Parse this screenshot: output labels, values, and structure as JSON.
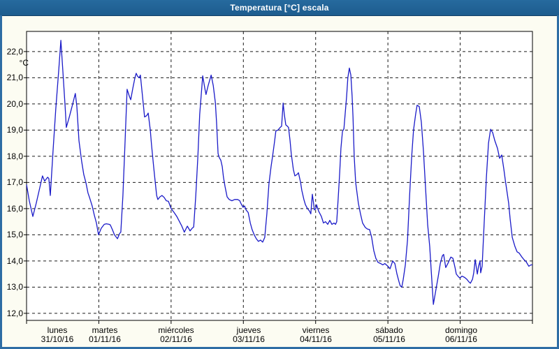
{
  "window": {
    "title": "Temperatura [°C] escala"
  },
  "colors": {
    "titlebar": "#1d5c8e",
    "frame": "#2e6da4",
    "background": "#fcfcf2",
    "plot_background": "#ffffff",
    "grid": "#1a1a1a",
    "axis": "#000000",
    "series_line": "#1a1ac8",
    "title_text": "#ffffff",
    "label_text": "#000000"
  },
  "chart_data": {
    "type": "line",
    "title": "Temperatura [°C] escala",
    "legend": "none",
    "grid": "dashed",
    "y_axis": {
      "unit_label": "°C",
      "tick_values": [
        22,
        21,
        20,
        19,
        18,
        17,
        16,
        15,
        14,
        13,
        12
      ],
      "tick_labels": [
        "22,0",
        "21,0",
        "20,0",
        "19,0",
        "18,0",
        "17,0",
        "16,0",
        "15,0",
        "14,0",
        "13,0",
        "12,0"
      ],
      "max": 22.77,
      "min": 11.73
    },
    "x_axis": {
      "unit": "hours_from_monday_00h",
      "range_hours": [
        0,
        168
      ],
      "day_tick_hours": [
        0,
        24,
        48,
        72,
        96,
        120,
        144,
        168
      ],
      "labels": [
        {
          "day": "lunes",
          "date": "31/10/16"
        },
        {
          "day": "martes",
          "date": "01/11/16"
        },
        {
          "day": "miércoles",
          "date": "02/11/16"
        },
        {
          "day": "jueves",
          "date": "03/11/16"
        },
        {
          "day": "viernes",
          "date": "04/11/16"
        },
        {
          "day": "sábado",
          "date": "05/11/16"
        },
        {
          "day": "domingo",
          "date": "06/11/16"
        }
      ]
    },
    "series": [
      {
        "name": "Temperatura",
        "color": "#1a1ac8",
        "points": [
          [
            0.0,
            16.92
          ],
          [
            0.9,
            16.3
          ],
          [
            2.1,
            15.7
          ],
          [
            3.2,
            16.2
          ],
          [
            4.2,
            16.7
          ],
          [
            5.3,
            17.25
          ],
          [
            6.0,
            17.05
          ],
          [
            7.0,
            17.2
          ],
          [
            7.4,
            17.15
          ],
          [
            7.9,
            16.5
          ],
          [
            8.8,
            18.2
          ],
          [
            9.7,
            19.8
          ],
          [
            10.7,
            21.3
          ],
          [
            11.4,
            22.43
          ],
          [
            12.1,
            21.2
          ],
          [
            12.8,
            19.9
          ],
          [
            13.2,
            19.1
          ],
          [
            14.2,
            19.5
          ],
          [
            15.1,
            19.9
          ],
          [
            16.2,
            20.4
          ],
          [
            16.7,
            19.9
          ],
          [
            17.4,
            18.6
          ],
          [
            18.3,
            17.8
          ],
          [
            19.0,
            17.3
          ],
          [
            19.7,
            17.0
          ],
          [
            20.4,
            16.6
          ],
          [
            20.9,
            16.43
          ],
          [
            21.8,
            16.1
          ],
          [
            22.5,
            15.75
          ],
          [
            23.2,
            15.45
          ],
          [
            23.9,
            15.0
          ],
          [
            24.8,
            15.25
          ],
          [
            25.8,
            15.4
          ],
          [
            26.5,
            15.42
          ],
          [
            27.4,
            15.4
          ],
          [
            27.8,
            15.38
          ],
          [
            28.5,
            15.2
          ],
          [
            29.2,
            15.0
          ],
          [
            30.2,
            14.85
          ],
          [
            30.9,
            15.05
          ],
          [
            31.3,
            15.1
          ],
          [
            32.0,
            16.5
          ],
          [
            32.7,
            18.5
          ],
          [
            33.4,
            20.56
          ],
          [
            34.1,
            20.3
          ],
          [
            34.6,
            20.16
          ],
          [
            35.3,
            20.6
          ],
          [
            36.0,
            21.0
          ],
          [
            36.4,
            21.17
          ],
          [
            36.9,
            21.05
          ],
          [
            37.4,
            21.0
          ],
          [
            37.8,
            21.1
          ],
          [
            38.5,
            20.3
          ],
          [
            39.2,
            19.5
          ],
          [
            39.9,
            19.55
          ],
          [
            40.4,
            19.65
          ],
          [
            41.1,
            19.0
          ],
          [
            41.5,
            18.45
          ],
          [
            42.2,
            17.6
          ],
          [
            42.7,
            17.05
          ],
          [
            43.2,
            16.5
          ],
          [
            43.6,
            16.35
          ],
          [
            44.3,
            16.45
          ],
          [
            45.0,
            16.5
          ],
          [
            45.7,
            16.43
          ],
          [
            46.4,
            16.3
          ],
          [
            47.1,
            16.28
          ],
          [
            48.0,
            16.0
          ],
          [
            49.0,
            15.85
          ],
          [
            49.9,
            15.7
          ],
          [
            50.8,
            15.5
          ],
          [
            51.5,
            15.35
          ],
          [
            52.4,
            15.1
          ],
          [
            53.4,
            15.33
          ],
          [
            53.8,
            15.25
          ],
          [
            54.3,
            15.15
          ],
          [
            55.0,
            15.25
          ],
          [
            55.5,
            15.3
          ],
          [
            56.2,
            16.5
          ],
          [
            56.9,
            18.0
          ],
          [
            57.5,
            19.6
          ],
          [
            58.5,
            21.07
          ],
          [
            59.2,
            20.6
          ],
          [
            59.6,
            20.36
          ],
          [
            60.3,
            20.7
          ],
          [
            61.3,
            21.1
          ],
          [
            62.0,
            20.7
          ],
          [
            62.7,
            20.05
          ],
          [
            63.1,
            19.3
          ],
          [
            63.6,
            18.1
          ],
          [
            64.0,
            17.95
          ],
          [
            64.5,
            17.85
          ],
          [
            65.0,
            17.6
          ],
          [
            65.4,
            17.2
          ],
          [
            65.9,
            16.85
          ],
          [
            66.6,
            16.45
          ],
          [
            67.3,
            16.35
          ],
          [
            68.2,
            16.3
          ],
          [
            69.1,
            16.35
          ],
          [
            70.1,
            16.35
          ],
          [
            70.8,
            16.3
          ],
          [
            71.2,
            16.2
          ],
          [
            71.9,
            16.05
          ],
          [
            72.4,
            16.1
          ],
          [
            72.9,
            15.95
          ],
          [
            73.6,
            15.85
          ],
          [
            74.3,
            15.45
          ],
          [
            74.9,
            15.2
          ],
          [
            75.6,
            15.0
          ],
          [
            76.3,
            14.85
          ],
          [
            77.0,
            14.75
          ],
          [
            77.7,
            14.8
          ],
          [
            78.4,
            14.72
          ],
          [
            79.1,
            14.9
          ],
          [
            79.8,
            15.8
          ],
          [
            80.5,
            16.95
          ],
          [
            81.2,
            17.6
          ],
          [
            81.7,
            18.0
          ],
          [
            82.4,
            18.6
          ],
          [
            82.8,
            18.97
          ],
          [
            83.5,
            19.0
          ],
          [
            84.2,
            19.1
          ],
          [
            84.7,
            19.15
          ],
          [
            85.2,
            20.03
          ],
          [
            85.6,
            19.6
          ],
          [
            86.1,
            19.2
          ],
          [
            86.6,
            19.15
          ],
          [
            87.0,
            19.1
          ],
          [
            87.5,
            18.6
          ],
          [
            87.9,
            18.1
          ],
          [
            88.6,
            17.5
          ],
          [
            89.1,
            17.25
          ],
          [
            89.8,
            17.3
          ],
          [
            90.3,
            17.37
          ],
          [
            91.0,
            17.0
          ],
          [
            91.4,
            16.7
          ],
          [
            92.1,
            16.35
          ],
          [
            92.6,
            16.15
          ],
          [
            93.3,
            16.0
          ],
          [
            94.0,
            15.9
          ],
          [
            94.4,
            15.8
          ],
          [
            94.9,
            16.55
          ],
          [
            95.6,
            15.95
          ],
          [
            96.1,
            16.0
          ],
          [
            96.3,
            16.15
          ],
          [
            97.0,
            15.9
          ],
          [
            97.9,
            15.7
          ],
          [
            98.6,
            15.45
          ],
          [
            99.3,
            15.5
          ],
          [
            100.0,
            15.4
          ],
          [
            100.7,
            15.55
          ],
          [
            101.4,
            15.4
          ],
          [
            102.1,
            15.45
          ],
          [
            102.6,
            15.4
          ],
          [
            103.0,
            15.5
          ],
          [
            103.5,
            16.4
          ],
          [
            104.0,
            17.4
          ],
          [
            104.4,
            18.3
          ],
          [
            104.9,
            18.95
          ],
          [
            105.4,
            19.05
          ],
          [
            105.8,
            19.6
          ],
          [
            106.3,
            20.3
          ],
          [
            106.7,
            21.0
          ],
          [
            107.2,
            21.37
          ],
          [
            107.7,
            21.1
          ],
          [
            108.1,
            20.3
          ],
          [
            108.4,
            19.5
          ],
          [
            108.8,
            18.0
          ],
          [
            109.3,
            17.0
          ],
          [
            110.2,
            16.2
          ],
          [
            110.9,
            15.8
          ],
          [
            111.6,
            15.45
          ],
          [
            112.5,
            15.28
          ],
          [
            113.2,
            15.22
          ],
          [
            113.9,
            15.2
          ],
          [
            114.6,
            14.9
          ],
          [
            115.3,
            14.4
          ],
          [
            116.0,
            14.1
          ],
          [
            116.7,
            13.95
          ],
          [
            117.6,
            13.9
          ],
          [
            118.3,
            13.85
          ],
          [
            119.0,
            13.9
          ],
          [
            120.0,
            13.8
          ],
          [
            120.7,
            13.7
          ],
          [
            121.6,
            14.0
          ],
          [
            122.3,
            13.9
          ],
          [
            123.0,
            13.5
          ],
          [
            123.7,
            13.2
          ],
          [
            124.1,
            13.05
          ],
          [
            124.6,
            13.0
          ],
          [
            125.1,
            13.3
          ],
          [
            125.8,
            13.85
          ],
          [
            126.5,
            14.8
          ],
          [
            127.2,
            16.5
          ],
          [
            127.9,
            18.0
          ],
          [
            128.5,
            19.0
          ],
          [
            129.2,
            19.6
          ],
          [
            129.7,
            19.95
          ],
          [
            130.4,
            19.9
          ],
          [
            131.1,
            19.3
          ],
          [
            131.8,
            18.2
          ],
          [
            132.5,
            16.8
          ],
          [
            133.2,
            15.4
          ],
          [
            133.9,
            14.55
          ],
          [
            134.4,
            13.6
          ],
          [
            135.1,
            12.34
          ],
          [
            135.8,
            12.8
          ],
          [
            136.7,
            13.4
          ],
          [
            137.4,
            13.9
          ],
          [
            138.1,
            14.2
          ],
          [
            138.5,
            14.25
          ],
          [
            139.2,
            13.75
          ],
          [
            139.9,
            13.9
          ],
          [
            140.9,
            14.15
          ],
          [
            141.6,
            14.1
          ],
          [
            142.3,
            13.75
          ],
          [
            142.7,
            13.5
          ],
          [
            143.4,
            13.4
          ],
          [
            143.9,
            13.35
          ],
          [
            144.6,
            13.42
          ],
          [
            145.5,
            13.37
          ],
          [
            146.2,
            13.3
          ],
          [
            146.9,
            13.2
          ],
          [
            147.4,
            13.15
          ],
          [
            148.1,
            13.3
          ],
          [
            148.5,
            13.55
          ],
          [
            149.0,
            14.05
          ],
          [
            149.7,
            13.5
          ],
          [
            150.1,
            13.8
          ],
          [
            150.6,
            14.0
          ],
          [
            150.8,
            13.55
          ],
          [
            151.3,
            13.8
          ],
          [
            152.0,
            15.5
          ],
          [
            152.7,
            17.2
          ],
          [
            153.4,
            18.5
          ],
          [
            154.1,
            19.03
          ],
          [
            154.8,
            18.9
          ],
          [
            155.5,
            18.6
          ],
          [
            156.4,
            18.3
          ],
          [
            157.1,
            17.92
          ],
          [
            157.8,
            18.05
          ],
          [
            158.5,
            17.5
          ],
          [
            159.0,
            17.08
          ],
          [
            159.4,
            16.77
          ],
          [
            160.1,
            16.2
          ],
          [
            160.6,
            15.6
          ],
          [
            161.3,
            14.9
          ],
          [
            162.2,
            14.55
          ],
          [
            162.9,
            14.35
          ],
          [
            163.6,
            14.3
          ],
          [
            164.5,
            14.15
          ],
          [
            165.2,
            14.05
          ],
          [
            165.9,
            13.97
          ],
          [
            166.8,
            13.8
          ],
          [
            167.5,
            13.85
          ],
          [
            168.0,
            13.85
          ]
        ]
      }
    ]
  }
}
